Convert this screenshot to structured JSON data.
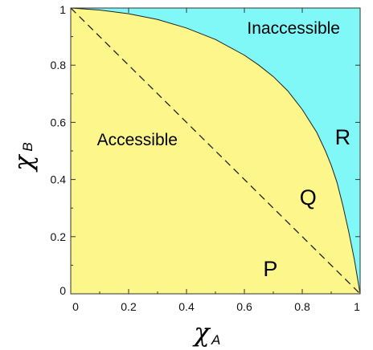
{
  "chart_data": {
    "type": "area",
    "title": "",
    "xlabel": "χ",
    "xlabel_sub": "A",
    "ylabel": "χ",
    "ylabel_sub": "B",
    "xlim": [
      0,
      1
    ],
    "ylim": [
      0,
      1
    ],
    "xticks": [
      0,
      0.2,
      0.4,
      0.6,
      0.8,
      1
    ],
    "yticks": [
      0,
      0.2,
      0.4,
      0.6,
      0.8,
      1
    ],
    "xtick_labels": [
      "0",
      "0.2",
      "0.4",
      "0.6",
      "0.8",
      "1"
    ],
    "ytick_labels": [
      "0",
      "0.2",
      "0.4",
      "0.6",
      "0.8",
      "1"
    ],
    "grid": false,
    "boundary_curve": {
      "x": [
        0,
        0.1,
        0.2,
        0.3,
        0.4,
        0.5,
        0.6,
        0.65,
        0.7,
        0.75,
        0.8,
        0.85,
        0.88,
        0.9,
        0.92,
        0.94,
        0.96,
        0.98,
        1.0
      ],
      "y": [
        1.0,
        0.993,
        0.98,
        0.96,
        0.93,
        0.89,
        0.835,
        0.8,
        0.76,
        0.71,
        0.645,
        0.565,
        0.5,
        0.45,
        0.39,
        0.31,
        0.22,
        0.12,
        0.0
      ]
    },
    "reference_line": {
      "x": [
        0,
        1
      ],
      "y": [
        1,
        0
      ],
      "style": "dashed"
    },
    "regions": [
      {
        "label": "Accessible",
        "color": "#fdf68a",
        "x": 0.23,
        "y": 0.54
      },
      {
        "label": "Inaccessible",
        "color": "#80f8f8",
        "x": 0.77,
        "y": 0.93
      }
    ],
    "point_labels": [
      {
        "label": "P",
        "x": 0.69,
        "y": 0.09
      },
      {
        "label": "Q",
        "x": 0.82,
        "y": 0.34
      },
      {
        "label": "R",
        "x": 0.94,
        "y": 0.55
      }
    ]
  }
}
